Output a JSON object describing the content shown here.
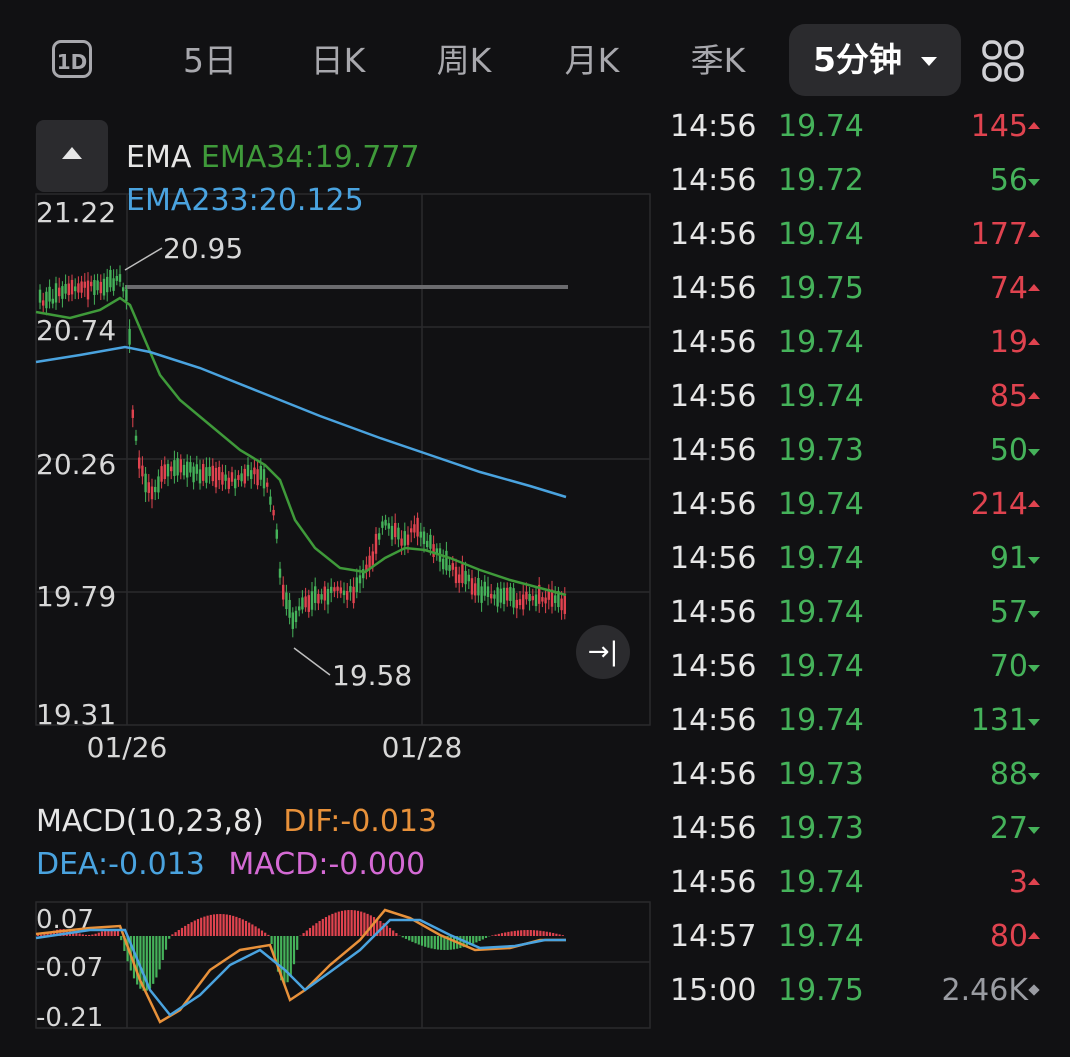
{
  "tabs": {
    "intraday": "1D",
    "five_day": "5日",
    "daily": "日K",
    "weekly": "周K",
    "monthly": "月K",
    "quarterly": "季K",
    "active_period": "5分钟"
  },
  "ema": {
    "label": "EMA",
    "ema34_label": "EMA34:19.777",
    "ema233_label": "EMA233:20.125",
    "ema34_color": "#3f9a3a",
    "ema233_color": "#4aa3df"
  },
  "price_axis": [
    "21.22",
    "20.74",
    "20.26",
    "19.79",
    "19.31"
  ],
  "date_axis": [
    "01/26",
    "01/28"
  ],
  "annotations": {
    "high": "20.95",
    "low": "19.58"
  },
  "macd": {
    "title": "MACD(10,23,8)",
    "dif": "DIF:-0.013",
    "dea": "DEA:-0.013",
    "macd": "MACD:-0.000",
    "axis": [
      "0.07",
      "-0.07",
      "-0.21"
    ],
    "dif_color": "#e8913a",
    "dea_color": "#4aa3df",
    "macd_color": "#d46ad4"
  },
  "colors": {
    "up": "#e0434f",
    "down": "#45b25a",
    "neutral": "#9a9ca2"
  },
  "trades": [
    {
      "time": "14:56",
      "price": "19.74",
      "vol": "145",
      "dir": "up"
    },
    {
      "time": "14:56",
      "price": "19.72",
      "vol": "56",
      "dir": "down"
    },
    {
      "time": "14:56",
      "price": "19.74",
      "vol": "177",
      "dir": "up"
    },
    {
      "time": "14:56",
      "price": "19.75",
      "vol": "74",
      "dir": "up"
    },
    {
      "time": "14:56",
      "price": "19.74",
      "vol": "19",
      "dir": "up"
    },
    {
      "time": "14:56",
      "price": "19.74",
      "vol": "85",
      "dir": "up"
    },
    {
      "time": "14:56",
      "price": "19.73",
      "vol": "50",
      "dir": "down"
    },
    {
      "time": "14:56",
      "price": "19.74",
      "vol": "214",
      "dir": "up"
    },
    {
      "time": "14:56",
      "price": "19.74",
      "vol": "91",
      "dir": "down"
    },
    {
      "time": "14:56",
      "price": "19.74",
      "vol": "57",
      "dir": "down"
    },
    {
      "time": "14:56",
      "price": "19.74",
      "vol": "70",
      "dir": "down"
    },
    {
      "time": "14:56",
      "price": "19.74",
      "vol": "131",
      "dir": "down"
    },
    {
      "time": "14:56",
      "price": "19.73",
      "vol": "88",
      "dir": "down"
    },
    {
      "time": "14:56",
      "price": "19.73",
      "vol": "27",
      "dir": "down"
    },
    {
      "time": "14:56",
      "price": "19.74",
      "vol": "3",
      "dir": "up"
    },
    {
      "time": "14:57",
      "price": "19.74",
      "vol": "80",
      "dir": "up"
    },
    {
      "time": "15:00",
      "price": "19.75",
      "vol": "2.46K",
      "dir": "neutral"
    }
  ]
}
